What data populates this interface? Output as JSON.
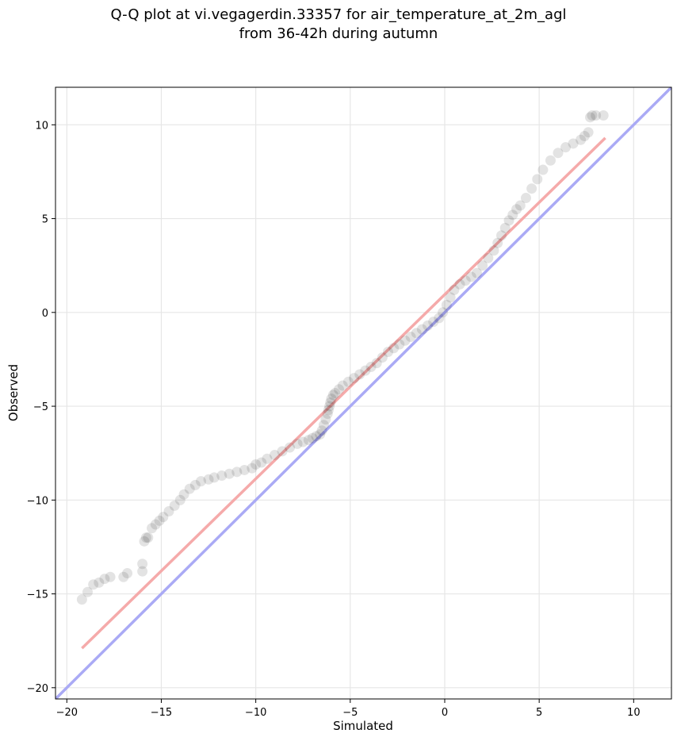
{
  "chart_data": {
    "type": "scatter",
    "title_line1": "Q-Q plot at vi.vegagerdin.33357 for air_temperature_at_2m_agl",
    "title_line2": "from 36-42h during autumn",
    "xlabel": "Simulated",
    "ylabel": "Observed",
    "xlim": [
      -20.6,
      12.0
    ],
    "ylim": [
      -20.6,
      12.0
    ],
    "xticks": [
      -20,
      -15,
      -10,
      -5,
      0,
      5,
      10
    ],
    "yticks": [
      -20,
      -15,
      -10,
      -5,
      0,
      5,
      10
    ],
    "xtick_labels": [
      "−20",
      "−15",
      "−10",
      "−5",
      "0",
      "5",
      "10"
    ],
    "ytick_labels": [
      "−20",
      "−15",
      "−10",
      "−5",
      "0",
      "5",
      "10"
    ],
    "grid": true,
    "reference_line": {
      "color": "#aaaaf5",
      "x": [
        -20.6,
        12.0
      ],
      "y": [
        -20.6,
        12.0
      ]
    },
    "fit_line": {
      "color": "#f5aaaa",
      "x": [
        -19.2,
        8.5
      ],
      "y": [
        -17.9,
        9.3
      ]
    },
    "point_color": "#000000",
    "points": {
      "x": [
        -19.2,
        -18.9,
        -18.6,
        -18.3,
        -18.0,
        -17.7,
        -17.0,
        -16.8,
        -16.0,
        -16.0,
        -15.9,
        -15.8,
        -15.7,
        -15.5,
        -15.3,
        -15.1,
        -14.9,
        -14.6,
        -14.3,
        -14.0,
        -13.8,
        -13.5,
        -13.2,
        -12.9,
        -12.5,
        -12.2,
        -11.8,
        -11.4,
        -11.0,
        -10.6,
        -10.2,
        -10.0,
        -9.7,
        -9.4,
        -9.0,
        -8.6,
        -8.2,
        -7.8,
        -7.5,
        -7.2,
        -7.0,
        -6.8,
        -6.6,
        -6.5,
        -6.4,
        -6.3,
        -6.2,
        -6.15,
        -6.1,
        -6.05,
        -6.0,
        -5.9,
        -5.8,
        -5.6,
        -5.4,
        -5.1,
        -4.8,
        -4.5,
        -4.2,
        -3.9,
        -3.6,
        -3.3,
        -3.0,
        -2.7,
        -2.4,
        -2.1,
        -1.8,
        -1.5,
        -1.2,
        -0.9,
        -0.6,
        -0.3,
        -0.1,
        0.1,
        0.3,
        0.5,
        0.8,
        1.1,
        1.4,
        1.7,
        2.0,
        2.3,
        2.6,
        2.8,
        3.0,
        3.2,
        3.4,
        3.6,
        3.8,
        4.0,
        4.3,
        4.6,
        4.9,
        5.2,
        5.6,
        6.0,
        6.4,
        6.8,
        7.2,
        7.4,
        7.6,
        7.7,
        7.8,
        8.0,
        8.4
      ],
      "y": [
        -15.3,
        -14.9,
        -14.5,
        -14.4,
        -14.2,
        -14.1,
        -14.1,
        -13.9,
        -13.8,
        -13.4,
        -12.2,
        -12.0,
        -12.0,
        -11.5,
        -11.3,
        -11.1,
        -10.9,
        -10.6,
        -10.3,
        -10.0,
        -9.7,
        -9.4,
        -9.2,
        -9.0,
        -8.9,
        -8.8,
        -8.7,
        -8.6,
        -8.5,
        -8.4,
        -8.3,
        -8.1,
        -8.0,
        -7.8,
        -7.6,
        -7.4,
        -7.2,
        -7.0,
        -6.9,
        -6.8,
        -6.7,
        -6.6,
        -6.5,
        -6.3,
        -6.0,
        -5.7,
        -5.4,
        -5.2,
        -5.0,
        -4.8,
        -4.6,
        -4.4,
        -4.3,
        -4.1,
        -3.9,
        -3.7,
        -3.5,
        -3.3,
        -3.1,
        -2.9,
        -2.7,
        -2.4,
        -2.1,
        -1.9,
        -1.7,
        -1.5,
        -1.3,
        -1.1,
        -0.9,
        -0.7,
        -0.5,
        -0.3,
        0.0,
        0.4,
        0.8,
        1.2,
        1.5,
        1.7,
        1.9,
        2.1,
        2.5,
        2.9,
        3.3,
        3.7,
        4.1,
        4.5,
        4.9,
        5.2,
        5.5,
        5.7,
        6.1,
        6.6,
        7.1,
        7.6,
        8.1,
        8.5,
        8.8,
        9.0,
        9.2,
        9.4,
        9.6,
        10.4,
        10.5,
        10.5,
        10.5
      ]
    }
  }
}
